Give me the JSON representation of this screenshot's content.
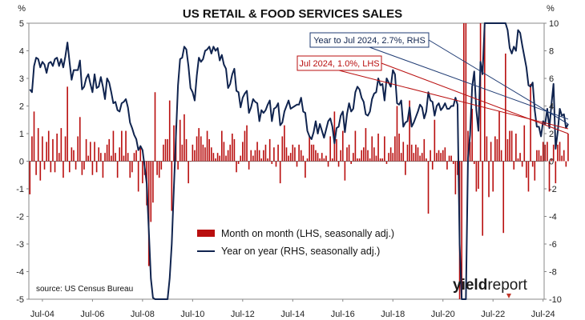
{
  "chart_data": {
    "type": "bar+line",
    "title": "US RETAIL & FOOD SERVICES SALES",
    "left_axis": {
      "unit_label": "%",
      "ylim": [
        -5,
        5
      ],
      "ticks": [
        5,
        4,
        3,
        2,
        1,
        0,
        -1,
        -2,
        -3,
        -4,
        -5
      ]
    },
    "right_axis": {
      "unit_label": "%",
      "ylim": [
        -10,
        10
      ],
      "ticks": [
        10,
        8,
        6,
        4,
        2,
        0,
        -2,
        -4,
        -6,
        -8,
        -10
      ]
    },
    "x_tick_labels": [
      "Jul-04",
      "Jul-06",
      "Jul-08",
      "Jul-10",
      "Jul-12",
      "Jul-14",
      "Jul-16",
      "Jul-18",
      "Jul-20",
      "Jul-22",
      "Jul-24"
    ],
    "x_range": [
      "2004-01",
      "2024-07"
    ],
    "grid": false,
    "colors": {
      "bars": "#b90f0f",
      "line": "#10244f",
      "bar_annotation_border": "#b90f0f",
      "line_annotation_border": "#1f3b73"
    },
    "series": [
      {
        "name": "Month on month (LHS, seasonally adj.)",
        "type": "bar",
        "axis": "left",
        "color": "#b90f0f",
        "start": "2004-01",
        "values": [
          -1.2,
          0.9,
          1.8,
          -0.5,
          1.2,
          -0.7,
          0.9,
          -0.3,
          0.7,
          1.1,
          -0.4,
          0.8,
          -0.4,
          1.0,
          0.3,
          1.2,
          -0.6,
          0.9,
          2.7,
          -0.4,
          0.5,
          0.4,
          -0.3,
          0.9,
          1.6,
          -0.5,
          -0.3,
          0.8,
          0.2,
          0.7,
          -0.5,
          0.7,
          -0.4,
          0.5,
          0.3,
          -0.6,
          0.3,
          0.6,
          0.8,
          0.2,
          1.1,
          0.3,
          -0.6,
          0.5,
          1.1,
          0.2,
          1.1,
          0.3,
          -0.6,
          -0.4,
          0.3,
          0.4,
          -1.1,
          0.5,
          -0.8,
          -0.5,
          -1.6,
          -3.8,
          -2.2,
          -1.5,
          2.5,
          -0.5,
          -0.6,
          -0.3,
          0.6,
          0.8,
          0.8,
          2.2,
          -1.8,
          1.3,
          1.3,
          -0.3,
          1.5,
          0.6,
          1.7,
          0.8,
          -0.8,
          0.0,
          0.6,
          0.4,
          0.9,
          1.2,
          0.9,
          0.6,
          0.5,
          1.1,
          0.8,
          0.5,
          0.3,
          0.1,
          0.3,
          0.2,
          1.1,
          0.7,
          0.2,
          0.4,
          0.6,
          1.0,
          0.8,
          -0.4,
          -0.1,
          0.2,
          0.7,
          1.1,
          1.3,
          -0.3,
          0.4,
          0.2,
          0.4,
          0.7,
          0.4,
          0.1,
          0.4,
          0.6,
          0.1,
          0.8,
          -0.1,
          0.5,
          -0.2,
          0.6,
          -0.8,
          0.9,
          1.3,
          0.5,
          0.2,
          0.3,
          0.6,
          0.5,
          -0.2,
          0.6,
          0.4,
          0.2,
          -0.6,
          0.1,
          0.9,
          0.6,
          0.6,
          0.4,
          0.3,
          0.1,
          0.3,
          0.1,
          0.2,
          -0.2,
          0.9,
          0.1,
          1.8,
          0.8,
          -0.2,
          0.4,
          1.1,
          -0.7,
          0.5,
          0.6,
          -0.1,
          0.3,
          1.1,
          0.1,
          0.1,
          0.4,
          0.5,
          1.2,
          0.4,
          0.1,
          0.9,
          0.5,
          0.2,
          1.0,
          0.1,
          0.1,
          0.9,
          -0.1,
          0.3,
          0.5,
          0.3,
          0.9,
          2.0,
          1.0,
          0.3,
          0.7,
          -0.5,
          0.6,
          2.2,
          0.6,
          0.3,
          0.6,
          0.5,
          0.2,
          0.3,
          0.8,
          0.1,
          -1.9,
          0.4,
          -0.3,
          1.5,
          0.3,
          0.4,
          0.3,
          0.4,
          0.5,
          -0.3,
          0.2,
          0.2,
          -0.1,
          -1.2,
          -0.5,
          -5.0,
          -5.0,
          5.0,
          5.0,
          1.1,
          0.7,
          1.9,
          -0.1,
          -1.1,
          -1.0,
          5.0,
          -2.7,
          5.0,
          0.9,
          -1.3,
          0.7,
          -1.1,
          0.9,
          0.8,
          1.8,
          0.4,
          -2.6,
          3.9,
          0.8,
          1.1,
          1.1,
          -0.3,
          1.0,
          0.1,
          0.3,
          -0.2,
          1.3,
          -0.6,
          -1.1,
          2.8,
          -0.2,
          -0.7,
          0.4,
          0.4,
          0.2,
          0.7,
          0.6,
          0.7,
          -1.1,
          0.1,
          0.6,
          -0.8,
          0.6,
          0.7,
          0.2,
          0.4,
          -0.2,
          1.0
        ]
      },
      {
        "name": "Year on year (RHS, seasonally adj.)",
        "type": "line",
        "axis": "right",
        "color": "#10244f",
        "start": "2004-01",
        "values": [
          5.2,
          5.0,
          6.9,
          7.5,
          7.4,
          6.8,
          7.2,
          7.0,
          6.4,
          7.1,
          7.2,
          6.9,
          7.4,
          7.5,
          6.9,
          7.4,
          6.8,
          7.6,
          8.6,
          7.2,
          5.9,
          6.6,
          6.6,
          6.6,
          7.3,
          5.2,
          5.4,
          6.0,
          6.3,
          5.6,
          5.0,
          6.3,
          5.3,
          5.4,
          6.1,
          5.4,
          4.5,
          6.0,
          5.7,
          5.0,
          4.2,
          4.3,
          3.7,
          3.6,
          4.2,
          4.3,
          4.5,
          3.9,
          2.8,
          2.4,
          1.9,
          1.6,
          0.8,
          1.1,
          0.8,
          -0.4,
          -1.6,
          -5.0,
          -8.5,
          -9.9,
          -10.0,
          -10.0,
          -10.0,
          -10.0,
          -10.0,
          -10.0,
          -10.0,
          -8.5,
          -6.0,
          -2.0,
          1.8,
          5.5,
          7.4,
          7.5,
          8.3,
          8.1,
          6.9,
          5.3,
          5.0,
          4.4,
          6.2,
          7.5,
          7.2,
          7.4,
          8.0,
          8.1,
          8.3,
          7.8,
          8.3,
          8.0,
          8.2,
          7.3,
          7.7,
          7.0,
          6.7,
          5.3,
          5.6,
          6.3,
          6.7,
          5.1,
          5.0,
          3.9,
          4.6,
          4.9,
          5.1,
          3.5,
          3.9,
          4.5,
          4.3,
          4.2,
          2.9,
          3.7,
          3.5,
          3.7,
          4.1,
          4.4,
          2.9,
          3.8,
          3.9,
          4.2,
          2.6,
          2.8,
          3.6,
          4.0,
          4.4,
          3.8,
          3.9,
          4.0,
          4.1,
          4.1,
          4.6,
          3.6,
          3.5,
          2.2,
          1.8,
          1.6,
          2.1,
          2.9,
          2.0,
          2.7,
          2.2,
          1.7,
          2.3,
          2.9,
          3.1,
          2.5,
          1.3,
          2.4,
          2.5,
          3.3,
          3.6,
          2.1,
          3.4,
          4.2,
          3.6,
          3.8,
          5.0,
          5.4,
          5.2,
          4.6,
          4.3,
          3.4,
          3.3,
          3.6,
          4.5,
          4.9,
          5.0,
          6.0,
          5.5,
          5.6,
          4.4,
          6.0,
          5.7,
          5.4,
          6.6,
          6.3,
          4.2,
          4.1,
          4.4,
          2.5,
          2.8,
          2.9,
          3.9,
          2.5,
          2.8,
          3.2,
          3.6,
          4.1,
          3.9,
          3.1,
          3.6,
          5.0,
          4.4,
          4.3,
          3.3,
          4.0,
          4.2,
          3.7,
          3.9,
          4.2,
          3.8,
          3.8,
          4.0,
          4.0,
          4.6,
          4.1,
          -6.0,
          -10.0,
          -10.0,
          -10.0,
          0.2,
          1.9,
          5.4,
          6.5,
          3.7,
          2.2,
          7.2,
          6.3,
          10.0,
          10.0,
          10.0,
          10.0,
          10.0,
          10.0,
          10.0,
          10.0,
          10.0,
          10.0,
          10.0,
          9.5,
          8.2,
          7.8,
          8.3,
          8.0,
          9.5,
          9.3,
          8.4,
          7.6,
          6.8,
          5.5,
          5.4,
          5.7,
          3.7,
          2.5,
          2.5,
          1.8,
          2.9,
          2.7,
          3.8,
          2.4,
          4.1,
          5.6,
          0.9,
          2.1,
          3.8,
          3.3,
          3.4,
          2.4,
          2.7
        ]
      }
    ],
    "annotations": [
      {
        "text": "Year to Jul 2024, 2.7%, RHS",
        "series": "line"
      },
      {
        "text": "Jul 2024, 1.0%, LHS",
        "series": "bar"
      }
    ]
  },
  "source": "source: US Census Bureau",
  "logo": {
    "part1": "yield",
    "part2": "report"
  }
}
